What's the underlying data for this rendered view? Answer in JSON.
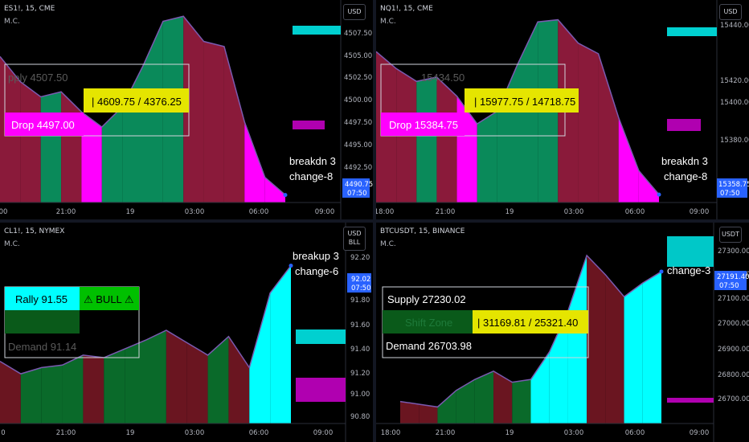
{
  "panels": [
    {
      "id": "es",
      "symbol": "ES1!, 15, CME",
      "indicator": "M.C.",
      "currency": "USD",
      "x_labels": [
        "00",
        "21:00",
        "19",
        "03:00",
        "06:00",
        "09:00"
      ],
      "y_labels": [
        "4507.50",
        "4505.00",
        "4502.50",
        "4500.00",
        "4497.50",
        "4495.00",
        "4492.50"
      ],
      "price_badge": "4490.75",
      "time_badge": "07:50",
      "supply_label": "pply  4507.50",
      "demand_label": "Drop  4497.00",
      "ratio_label": "|  4609.75 / 4376.25",
      "annotation_line1": "breakdn 3",
      "annotation_line2": "change-8",
      "colors": {
        "up": "#0a8a5a",
        "down": "#8a1a3a",
        "drop": "#ff00ff",
        "ratio_bg": "#e5e500",
        "zone": "#00d0d0",
        "zone2": "#b000b0"
      }
    },
    {
      "id": "nq",
      "symbol": "NQ1!, 15, CME",
      "indicator": "M.C.",
      "currency": "USD",
      "x_labels": [
        "18:00",
        "21:00",
        "19",
        "03:00",
        "06:00",
        "09:00"
      ],
      "y_labels": [
        "15440.00",
        "15420.00",
        "15400.00",
        "15380.00"
      ],
      "price_badge": "15358.75",
      "time_badge": "07:50",
      "supply_label": "15434.50",
      "demand_label": "Drop  15384.75",
      "ratio_label": "|  15977.75 / 14718.75",
      "annotation_line1": "breakdn 3",
      "annotation_line2": "change-8",
      "colors": {
        "up": "#0a8a5a",
        "down": "#8a1a3a",
        "drop": "#ff00ff",
        "ratio_bg": "#e5e500",
        "zone": "#00d0d0",
        "zone2": "#b000b0"
      }
    },
    {
      "id": "cl",
      "symbol": "CL1!, 15, NYMEX",
      "indicator": "M.C.",
      "currency_line1": "USD",
      "currency_line2": "BLL",
      "x_labels": [
        "0",
        "21:00",
        "19",
        "03:00",
        "06:00",
        "09:00"
      ],
      "y_labels": [
        "92.20",
        "91.80",
        "91.60",
        "91.40",
        "91.20",
        "91.00",
        "90.80"
      ],
      "price_badge": "92.02",
      "time_badge": "07:50",
      "rally_label": "Rally  91.55",
      "bull_label": "⚠ BULL ⚠",
      "demand_label": "Demand  91.14",
      "annotation_line1": "breakup 3",
      "annotation_line2": "change-6",
      "colors": {
        "up": "#0a6a2a",
        "down": "#6a1520",
        "rally": "#00ffff",
        "bull": "#00c000",
        "zone": "#00d0d0",
        "zone2": "#b000b0"
      }
    },
    {
      "id": "btc",
      "symbol": "BTCUSDT, 15, BINANCE",
      "indicator": "M.C.",
      "currency": "USDT",
      "x_labels": [
        "18:00",
        "21:00",
        "19",
        "03:00",
        "06:00",
        "09:00"
      ],
      "y_labels": [
        "27300.00",
        "27200.00",
        "27100.00",
        "27000.00",
        "26900.00",
        "26800.00",
        "26700.00"
      ],
      "price_badge": "27191.40",
      "time_badge": "07:50",
      "supply_label": "Supply  27230.02",
      "shift_label": "Shift Zone",
      "ratio_label": "|  31169.81 / 25321.40",
      "demand_label": "Demand  26703.98",
      "annotation_line1": "change-3",
      "colors": {
        "up": "#0a6a2a",
        "down": "#6a1520",
        "cyan": "#00ffff",
        "ratio_bg": "#e5e500",
        "zone": "#00c8c8",
        "zone2": "#b000b0"
      }
    }
  ],
  "chart_data": [
    {
      "type": "area",
      "symbol": "ES1!",
      "x": [
        "18:00",
        "19:00",
        "20:00",
        "21:00",
        "22:00",
        "23:00",
        "19",
        "01:00",
        "02:00",
        "03:00",
        "04:00",
        "05:00",
        "06:00",
        "07:00",
        "07:50"
      ],
      "values": [
        4504.5,
        4502.0,
        4500.5,
        4501.0,
        4499.0,
        4497.5,
        4499.5,
        4503.5,
        4508.0,
        4508.5,
        4506.0,
        4505.5,
        4498.0,
        4492.5,
        4490.75
      ],
      "ylim": [
        4490,
        4509
      ],
      "supply": 4507.5,
      "drop": 4497.0
    },
    {
      "type": "area",
      "symbol": "NQ1!",
      "x": [
        "18:00",
        "19:00",
        "20:00",
        "21:00",
        "22:00",
        "23:00",
        "19",
        "01:00",
        "02:00",
        "03:00",
        "04:00",
        "05:00",
        "06:00",
        "07:00",
        "07:50"
      ],
      "values": [
        15426,
        15418,
        15412,
        15414,
        15405,
        15392,
        15398,
        15420,
        15440,
        15441,
        15430,
        15425,
        15395,
        15370,
        15358.75
      ],
      "ylim": [
        15355,
        15445
      ],
      "supply": 15434.5,
      "drop": 15384.75
    },
    {
      "type": "area",
      "symbol": "CL1!",
      "x": [
        "18:00",
        "19:00",
        "20:00",
        "21:00",
        "22:00",
        "23:00",
        "19",
        "01:00",
        "02:00",
        "03:00",
        "04:00",
        "05:00",
        "06:00",
        "07:00",
        "07:50"
      ],
      "values": [
        91.25,
        91.15,
        91.2,
        91.22,
        91.3,
        91.28,
        91.35,
        91.42,
        91.5,
        91.4,
        91.3,
        91.45,
        91.2,
        91.8,
        92.02
      ],
      "ylim": [
        90.75,
        92.25
      ],
      "rally": 91.55,
      "demand": 91.14
    },
    {
      "type": "area",
      "symbol": "BTCUSDT",
      "x": [
        "18:00",
        "19:00",
        "20:00",
        "21:00",
        "22:00",
        "23:00",
        "19",
        "01:00",
        "02:00",
        "03:00",
        "04:00",
        "05:00",
        "06:00",
        "07:00",
        "07:50"
      ],
      "values": [
        26720,
        26710,
        26700,
        26760,
        26800,
        26830,
        26790,
        26800,
        26900,
        27050,
        27250,
        27180,
        27100,
        27150,
        27191.4
      ],
      "ylim": [
        26640,
        27340
      ],
      "supply": 27230.02,
      "demand": 26703.98
    }
  ]
}
